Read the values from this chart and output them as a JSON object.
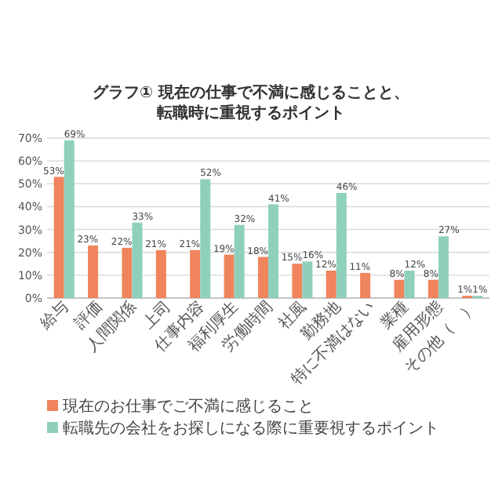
{
  "chart_data": {
    "type": "bar",
    "title": "グラフ① 現在の仕事で不満に感じることと、転職時に重視するポイント",
    "categories": [
      "給与",
      "評価",
      "人間関係",
      "上司",
      "仕事内容",
      "福利厚生",
      "労働時間",
      "社風",
      "勤務地",
      "特に不満はない",
      "業種",
      "雇用形態",
      "その他（　）"
    ],
    "series": [
      {
        "name": "現在のお仕事でご不満に感じること",
        "color": "#f0845c",
        "values": [
          53,
          23,
          22,
          21,
          21,
          19,
          18,
          15,
          12,
          11,
          8,
          8,
          1
        ]
      },
      {
        "name": "転職先の会社をお探しになる際に重要視するポイント",
        "color": "#8fd0bd",
        "values": [
          69,
          null,
          33,
          null,
          52,
          32,
          41,
          16,
          46,
          null,
          12,
          27,
          1
        ]
      }
    ],
    "ylim": [
      0,
      70
    ],
    "yticks": [
      {
        "value": 0,
        "label": "0%"
      },
      {
        "value": 10,
        "label": "10%"
      },
      {
        "value": 20,
        "label": "20%"
      },
      {
        "value": 30,
        "label": "30%"
      },
      {
        "value": 40,
        "label": "40%"
      },
      {
        "value": 50,
        "label": "50%"
      },
      {
        "value": 60,
        "label": "60%"
      },
      {
        "value": 70,
        "label": "70%"
      }
    ],
    "value_labels": [
      [
        "53%",
        "23%",
        "22%",
        "21%",
        "21%",
        "19%",
        "18%",
        "15%",
        "12%",
        "11%",
        "8%",
        "8%",
        "1%"
      ],
      [
        "69%",
        null,
        "33%",
        null,
        "52%",
        "32%",
        "41%",
        "16%",
        "46%",
        null,
        "12%",
        "27%",
        "1%"
      ]
    ],
    "grid": "y",
    "legend": "bottom"
  }
}
